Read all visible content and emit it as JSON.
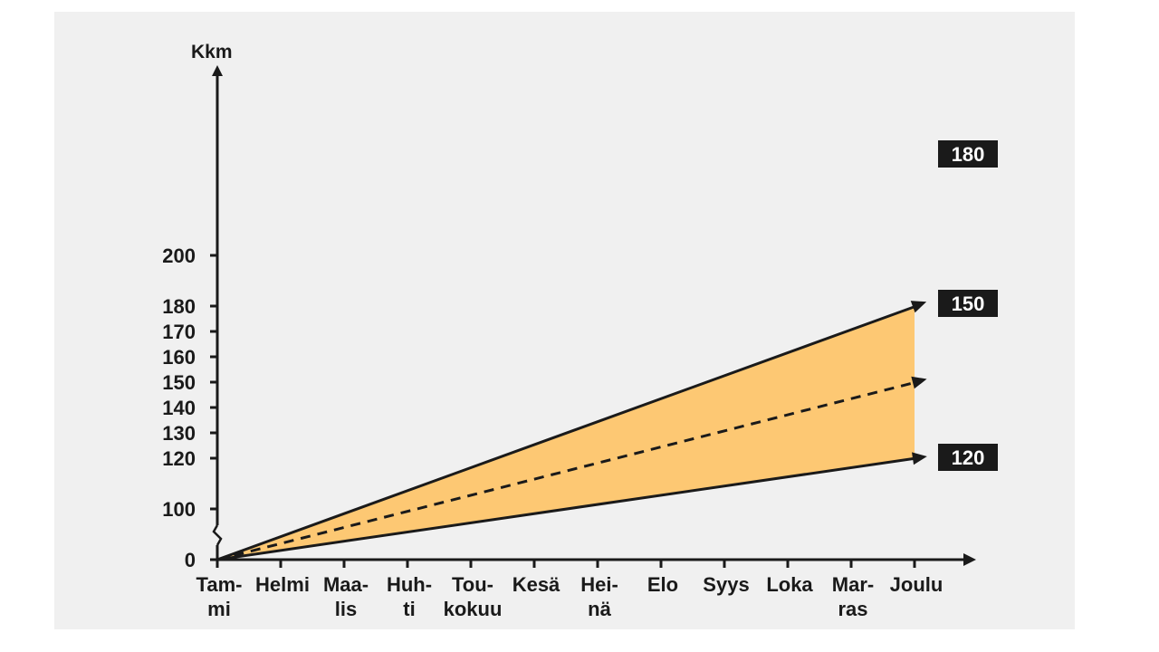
{
  "chart_data": {
    "type": "line",
    "ylabel": "Kkm",
    "y_ticks": [
      "0",
      "100",
      "120",
      "130",
      "140",
      "150",
      "160",
      "170",
      "180",
      "200"
    ],
    "y_axis_break": "0–100",
    "categories": [
      [
        "Tam-",
        "mi"
      ],
      [
        "Helmi"
      ],
      [
        "Maa-",
        "lis"
      ],
      [
        "Huh-",
        "ti"
      ],
      [
        "Tou-",
        "kokuu"
      ],
      [
        "Kesä"
      ],
      [
        "Hei-",
        "nä"
      ],
      [
        "Elo"
      ],
      [
        "Syys"
      ],
      [
        "Loka"
      ],
      [
        "Mar-",
        "ras"
      ],
      [
        "Joulu"
      ]
    ],
    "series": [
      {
        "style": "solid",
        "start": 0,
        "end": 180,
        "end_label": "180"
      },
      {
        "style": "dashed",
        "start": 0,
        "end": 150,
        "end_label": "150"
      },
      {
        "style": "solid",
        "start": 0,
        "end": 120,
        "end_label": "120"
      }
    ],
    "band": {
      "between": [
        180,
        120
      ],
      "color": "#fdc873"
    },
    "colors": {
      "line": "#1a1a1a",
      "panel": "#f0f0f0",
      "label_bg": "#1a1a1a",
      "label_text": "#ffffff"
    }
  }
}
